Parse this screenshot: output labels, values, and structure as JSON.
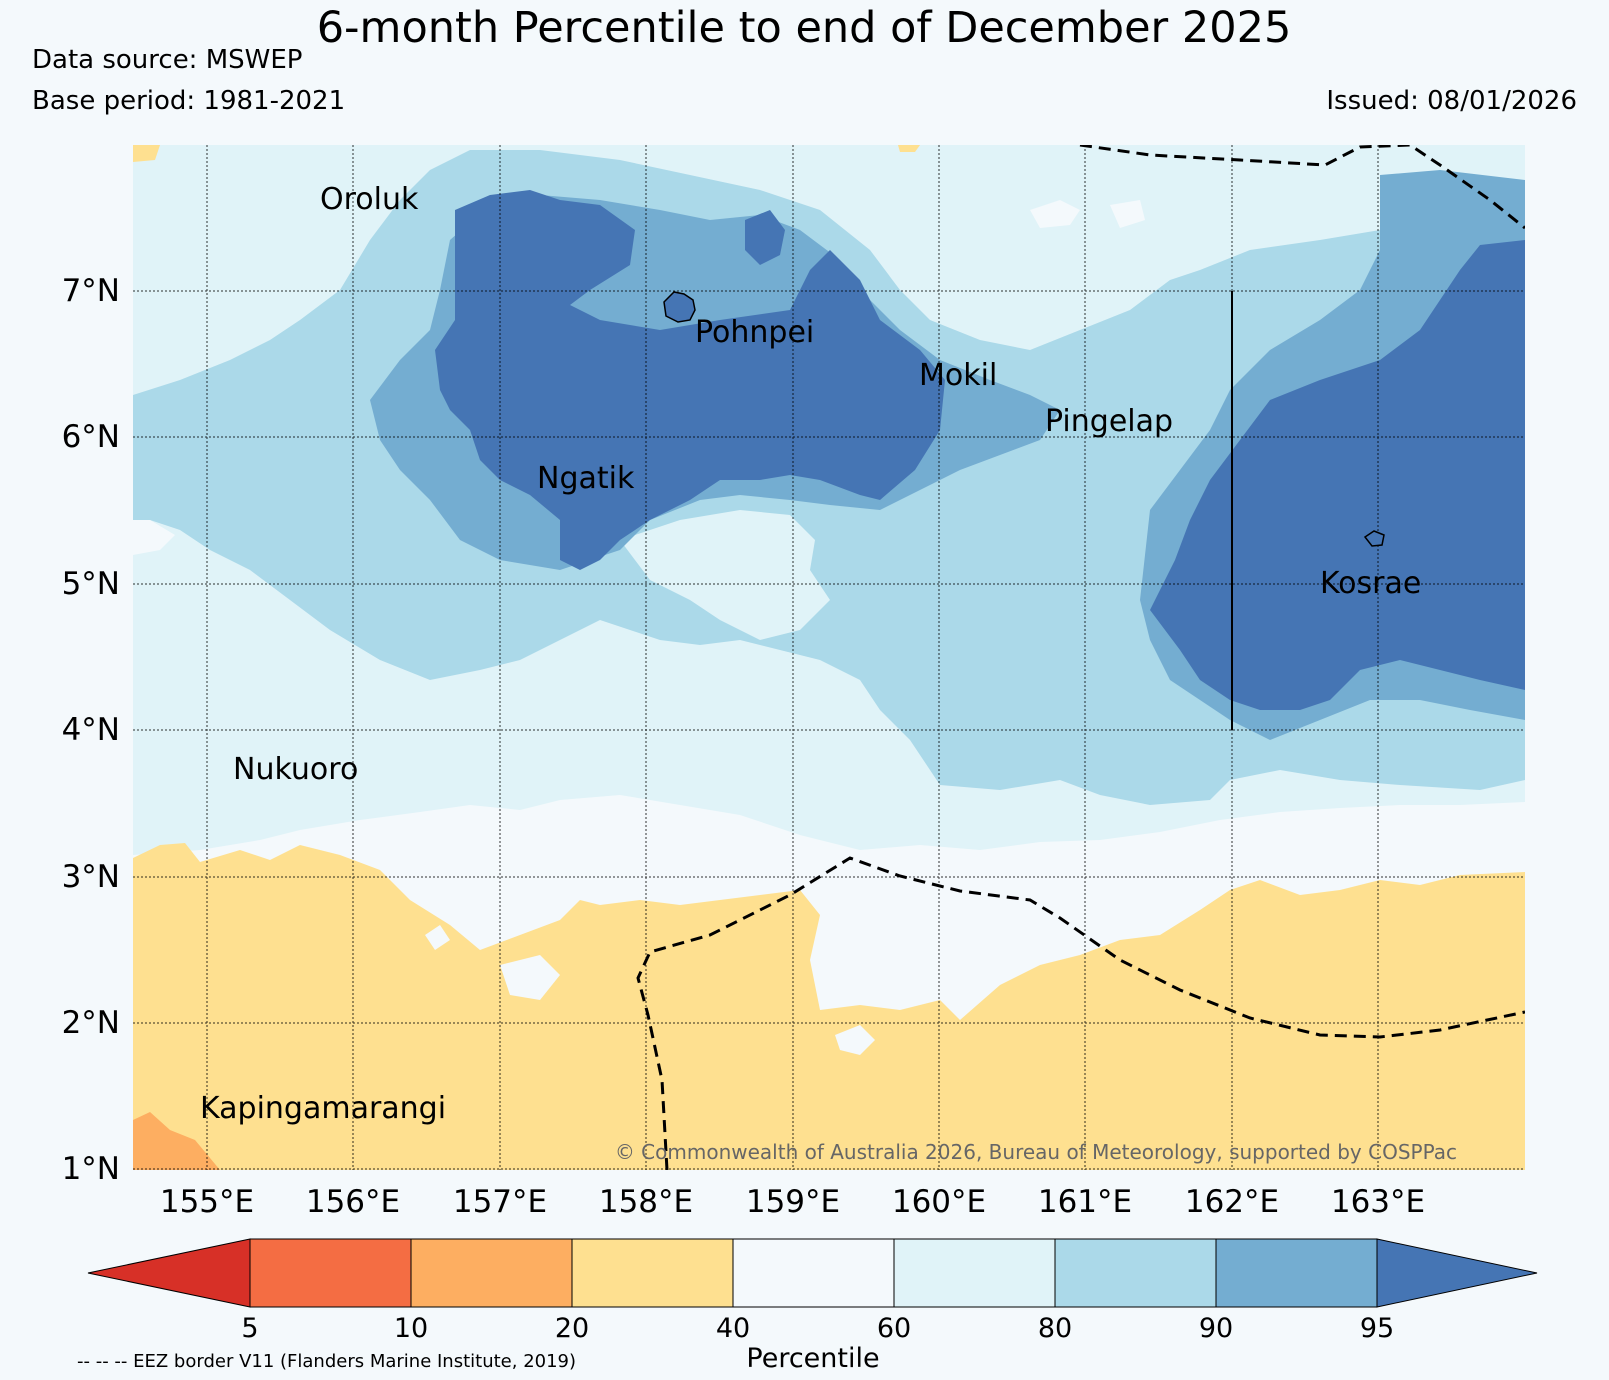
{
  "header": {
    "title": "6-month Percentile to end of December 2025",
    "data_source": "Data source: MSWEP",
    "base_period": "Base period: 1981-2021",
    "issued": "Issued: 08/01/2026"
  },
  "map": {
    "lat_labels": [
      "7°N",
      "6°N",
      "5°N",
      "4°N",
      "3°N",
      "2°N",
      "1°N"
    ],
    "lon_labels": [
      "155°E",
      "156°E",
      "157°E",
      "158°E",
      "159°E",
      "160°E",
      "161°E",
      "162°E",
      "163°E"
    ],
    "places": [
      "Oroluk",
      "Pohnpei",
      "Mokil",
      "Pingelap",
      "Ngatik",
      "Kosrae",
      "Nukuoro",
      "Kapingamarangi"
    ],
    "copyright": "© Commonwealth of Australia 2026, Bureau of Meteorology, supported by COSPPac"
  },
  "colorbar": {
    "ticks": [
      "5",
      "10",
      "20",
      "40",
      "60",
      "80",
      "90",
      "95"
    ],
    "label": "Percentile",
    "colors": [
      "#d73027",
      "#f46d43",
      "#fdae61",
      "#fee090",
      "#f4f9fc",
      "#e0f3f8",
      "#abd9e9",
      "#74add1",
      "#4575b4"
    ]
  },
  "footer": {
    "eez_note": "-- -- -- EEZ border V11 (Flanders Marine Institute, 2019)"
  }
}
